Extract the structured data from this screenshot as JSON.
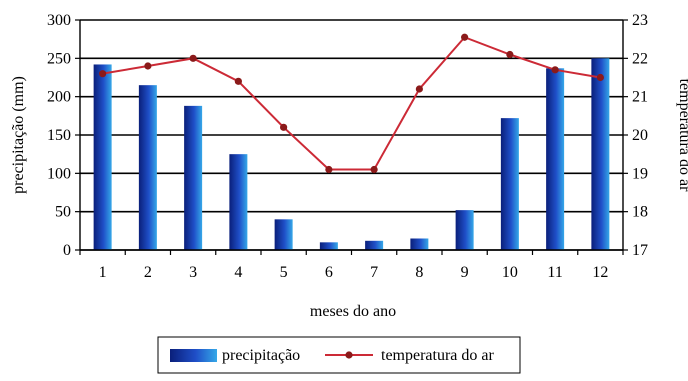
{
  "chart_data": {
    "type": "bar+line",
    "categories": [
      "1",
      "2",
      "3",
      "4",
      "5",
      "6",
      "7",
      "8",
      "9",
      "10",
      "11",
      "12"
    ],
    "xlabel": "meses do ano",
    "grid": true,
    "legend_position": "bottom",
    "series": [
      {
        "name": "precipitação",
        "type": "bar",
        "axis": "left",
        "ylabel": "precipitação (mm)",
        "ylim": [
          0,
          300
        ],
        "yticks": [
          0,
          50,
          100,
          150,
          200,
          250,
          300
        ],
        "color": "#1f4fc8",
        "values": [
          242,
          215,
          188,
          125,
          40,
          10,
          12,
          15,
          52,
          172,
          237,
          250
        ]
      },
      {
        "name": "temperatura do ar",
        "type": "line",
        "axis": "right",
        "ylabel": "temperatura do ar",
        "ylim": [
          17,
          23
        ],
        "yticks": [
          17,
          18,
          19,
          20,
          21,
          22,
          23
        ],
        "color": "#cc2a36",
        "marker_color": "#8b1a1a",
        "values": [
          21.6,
          21.8,
          22.0,
          21.4,
          20.2,
          19.1,
          19.1,
          21.2,
          22.55,
          22.1,
          21.7,
          21.5
        ]
      }
    ]
  }
}
